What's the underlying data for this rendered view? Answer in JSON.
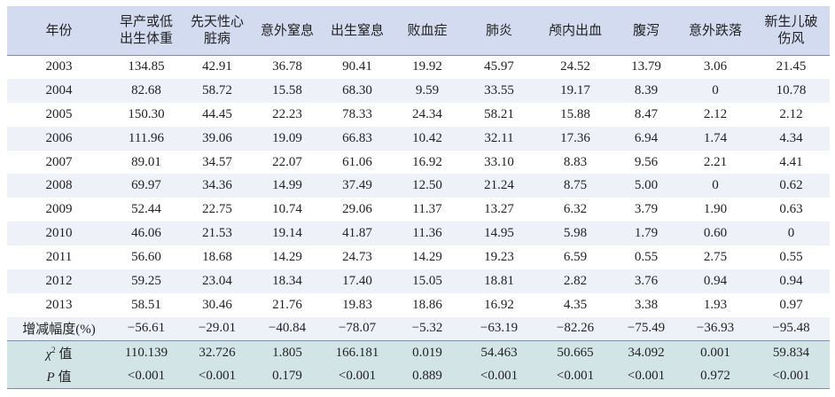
{
  "headers": [
    "年份",
    "早产或低\n出生体重",
    "先天性心\n脏病",
    "意外窒息",
    "出生窒息",
    "败血症",
    "肺炎",
    "颅内出血",
    "腹泻",
    "意外跌落",
    "新生儿破\n伤风"
  ],
  "rows": [
    [
      "2003",
      "134.85",
      "42.91",
      "36.78",
      "90.41",
      "19.92",
      "45.97",
      "24.52",
      "13.79",
      "3.06",
      "21.45"
    ],
    [
      "2004",
      "82.68",
      "58.72",
      "15.58",
      "68.30",
      "9.59",
      "33.55",
      "19.17",
      "8.39",
      "0",
      "10.78"
    ],
    [
      "2005",
      "150.30",
      "44.45",
      "22.23",
      "78.33",
      "24.34",
      "58.21",
      "15.88",
      "8.47",
      "2.12",
      "2.12"
    ],
    [
      "2006",
      "111.96",
      "39.06",
      "19.09",
      "66.83",
      "10.42",
      "32.11",
      "17.36",
      "6.94",
      "1.74",
      "4.34"
    ],
    [
      "2007",
      "89.01",
      "34.57",
      "22.07",
      "61.06",
      "16.92",
      "33.10",
      "8.83",
      "9.56",
      "2.21",
      "4.41"
    ],
    [
      "2008",
      "69.97",
      "34.36",
      "14.99",
      "37.49",
      "12.50",
      "21.24",
      "8.75",
      "5.00",
      "0",
      "0.62"
    ],
    [
      "2009",
      "52.44",
      "22.75",
      "10.74",
      "29.06",
      "11.37",
      "13.27",
      "6.32",
      "3.79",
      "1.90",
      "0.63"
    ],
    [
      "2010",
      "46.06",
      "21.53",
      "19.14",
      "41.87",
      "11.36",
      "14.95",
      "5.98",
      "1.79",
      "0.60",
      "0"
    ],
    [
      "2011",
      "56.60",
      "18.68",
      "14.29",
      "24.73",
      "14.29",
      "19.23",
      "6.59",
      "0.55",
      "2.75",
      "0.55"
    ],
    [
      "2012",
      "59.25",
      "23.04",
      "18.34",
      "17.40",
      "15.05",
      "18.81",
      "2.82",
      "3.76",
      "0.94",
      "0.94"
    ],
    [
      "2013",
      "58.51",
      "30.46",
      "21.76",
      "19.83",
      "18.86",
      "16.92",
      "4.35",
      "3.38",
      "1.93",
      "0.97"
    ]
  ],
  "change_row": {
    "label": "增减幅度(%)",
    "values": [
      "−56.61",
      "−29.01",
      "−40.84",
      "−78.07",
      "−5.32",
      "−63.19",
      "−82.26",
      "−75.49",
      "−36.93",
      "−95.48"
    ]
  },
  "chi_row": {
    "label_symbol": "χ",
    "label_sup": "2",
    "label_suffix": " 值",
    "values": [
      "110.139",
      "32.726",
      "1.805",
      "166.181",
      "0.019",
      "54.463",
      "50.665",
      "34.092",
      "0.001",
      "59.834"
    ]
  },
  "p_row": {
    "label_symbol": "P",
    "label_suffix": " 值",
    "values": [
      "<0.001",
      "<0.001",
      "0.179",
      "<0.001",
      "0.889",
      "<0.001",
      "<0.001",
      "<0.001",
      "0.972",
      "<0.001"
    ]
  },
  "colors": {
    "header_bg": "#d2dbef",
    "alt_row_bg": "#eef1f8",
    "stats_bg": "#d3e4e6",
    "rule": "#7b8db5"
  }
}
